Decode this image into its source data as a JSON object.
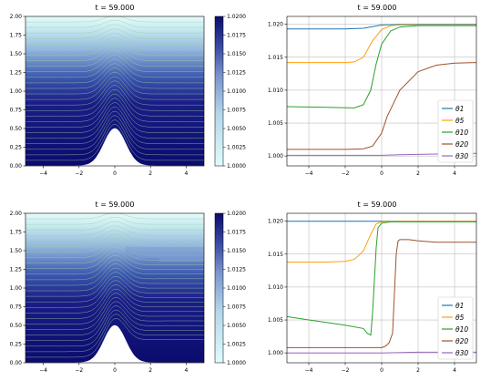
{
  "colors": {
    "cmap_low": "#e0fbfb",
    "cmap_high": "#0b0b6e",
    "cmap_mid": "#8aa6d6",
    "contour_line": "#9ad0a0",
    "contour_tick": "#d24a7a",
    "grid": "#b0b0b0",
    "theta1": "#1f77b4",
    "theta5": "#ff9f0e",
    "theta10": "#2ca02c",
    "theta20": "#a0522d",
    "theta30": "#9467bd"
  },
  "chart_data": [
    {
      "type": "heatmap",
      "panel": "top-left",
      "title": "t = 59.000",
      "xlim": [
        -5,
        5
      ],
      "ylim": [
        0,
        2
      ],
      "x_ticks": [
        "−4",
        "−2",
        "0",
        "2",
        "4"
      ],
      "y_ticks": [
        "0.00",
        "0.25",
        "0.50",
        "0.75",
        "1.00",
        "1.25",
        "1.50",
        "1.75",
        "2.00"
      ],
      "bump": {
        "peak": 0.5,
        "center": 0,
        "width": 1
      },
      "colorbar": {
        "range": [
          1.0,
          1.02
        ],
        "ticks": [
          "1.0200",
          "1.0175",
          "1.0150",
          "1.0125",
          "1.0100",
          "1.0075",
          "1.0050",
          "1.0025",
          "1.0000"
        ]
      }
    },
    {
      "type": "line",
      "panel": "top-right",
      "title": "t = 59.000",
      "xlim": [
        -5.2,
        5.2
      ],
      "ylim": [
        0.9985,
        1.0212
      ],
      "x_ticks": [
        "−4",
        "−2",
        "0",
        "2",
        "4"
      ],
      "y_ticks": [
        "1.000",
        "1.005",
        "1.010",
        "1.015",
        "1.020"
      ],
      "grid": true,
      "legend": "lower-right",
      "series": [
        {
          "name": "θ1",
          "points": [
            [
              -5.2,
              1.0193
            ],
            [
              -4,
              1.0193
            ],
            [
              -2,
              1.0193
            ],
            [
              -1,
              1.0194
            ],
            [
              0,
              1.0199
            ],
            [
              1,
              1.02
            ],
            [
              2,
              1.02
            ],
            [
              5.2,
              1.02
            ]
          ]
        },
        {
          "name": "θ5",
          "points": [
            [
              -5.2,
              1.0142
            ],
            [
              -4,
              1.0142
            ],
            [
              -2,
              1.0142
            ],
            [
              -1.5,
              1.0143
            ],
            [
              -1,
              1.015
            ],
            [
              -0.5,
              1.0175
            ],
            [
              0,
              1.0192
            ],
            [
              0.5,
              1.0198
            ],
            [
              1,
              1.0199
            ],
            [
              2,
              1.0199
            ],
            [
              5.2,
              1.0199
            ]
          ]
        },
        {
          "name": "θ10",
          "points": [
            [
              -5.2,
              1.0075
            ],
            [
              -3,
              1.0074
            ],
            [
              -1.5,
              1.0073
            ],
            [
              -1,
              1.0078
            ],
            [
              -0.6,
              1.01
            ],
            [
              -0.3,
              1.014
            ],
            [
              0,
              1.017
            ],
            [
              0.5,
              1.019
            ],
            [
              1,
              1.0196
            ],
            [
              2,
              1.0198
            ],
            [
              5.2,
              1.0198
            ]
          ]
        },
        {
          "name": "θ20",
          "points": [
            [
              -5.2,
              1.001
            ],
            [
              -2,
              1.001
            ],
            [
              -1,
              1.0011
            ],
            [
              -0.5,
              1.0015
            ],
            [
              0,
              1.0035
            ],
            [
              0.3,
              1.006
            ],
            [
              1,
              1.01
            ],
            [
              2,
              1.0128
            ],
            [
              3,
              1.0138
            ],
            [
              4,
              1.0141
            ],
            [
              5.2,
              1.0142
            ]
          ]
        },
        {
          "name": "θ30",
          "points": [
            [
              -5.2,
              1.0001
            ],
            [
              -2,
              1.0001
            ],
            [
              0,
              1.0001
            ],
            [
              1,
              1.0002
            ],
            [
              3,
              1.0003
            ],
            [
              5.2,
              1.0004
            ]
          ]
        }
      ]
    },
    {
      "type": "heatmap",
      "panel": "bottom-left",
      "title": "t = 59.000",
      "xlim": [
        -5,
        5
      ],
      "ylim": [
        0,
        2
      ],
      "x_ticks": [
        "−4",
        "−2",
        "0",
        "2",
        "4"
      ],
      "y_ticks": [
        "0.00",
        "0.25",
        "0.50",
        "0.75",
        "1.00",
        "1.25",
        "1.50",
        "1.75",
        "2.00"
      ],
      "bump": {
        "peak": 0.5,
        "center": 0,
        "width": 1
      },
      "colorbar": {
        "range": [
          1.0,
          1.02
        ],
        "ticks": [
          "1.0200",
          "1.0175",
          "1.0150",
          "1.0125",
          "1.0100",
          "1.0075",
          "1.0050",
          "1.0025",
          "1.0000"
        ]
      }
    },
    {
      "type": "line",
      "panel": "bottom-right",
      "title": "t = 59.000",
      "xlim": [
        -5.2,
        5.2
      ],
      "ylim": [
        0.9985,
        1.0212
      ],
      "x_ticks": [
        "−4",
        "−2",
        "0",
        "2",
        "4"
      ],
      "y_ticks": [
        "1.000",
        "1.005",
        "1.010",
        "1.015",
        "1.020"
      ],
      "grid": true,
      "legend": "lower-right",
      "series": [
        {
          "name": "θ1",
          "points": [
            [
              -5.2,
              1.02
            ],
            [
              -2,
              1.02
            ],
            [
              0,
              1.02
            ],
            [
              2,
              1.02
            ],
            [
              5.2,
              1.02
            ]
          ]
        },
        {
          "name": "θ5",
          "points": [
            [
              -5.2,
              1.0138
            ],
            [
              -3,
              1.0138
            ],
            [
              -2,
              1.0139
            ],
            [
              -1.5,
              1.0142
            ],
            [
              -1,
              1.0155
            ],
            [
              -0.6,
              1.018
            ],
            [
              -0.3,
              1.0196
            ],
            [
              0,
              1.0199
            ],
            [
              1,
              1.02
            ],
            [
              5.2,
              1.02
            ]
          ]
        },
        {
          "name": "θ10",
          "points": [
            [
              -5.2,
              1.0055
            ],
            [
              -4,
              1.005
            ],
            [
              -3,
              1.0046
            ],
            [
              -2,
              1.0042
            ],
            [
              -1,
              1.0037
            ],
            [
              -0.8,
              1.003
            ],
            [
              -0.6,
              1.0027
            ],
            [
              -0.5,
              1.006
            ],
            [
              -0.4,
              1.011
            ],
            [
              -0.3,
              1.016
            ],
            [
              -0.2,
              1.019
            ],
            [
              0,
              1.0197
            ],
            [
              0.5,
              1.0199
            ],
            [
              5.2,
              1.0199
            ]
          ]
        },
        {
          "name": "θ20",
          "points": [
            [
              -5.2,
              1.0008
            ],
            [
              -1,
              1.0008
            ],
            [
              0,
              1.0008
            ],
            [
              0.2,
              1.001
            ],
            [
              0.4,
              1.0015
            ],
            [
              0.6,
              1.003
            ],
            [
              0.7,
              1.009
            ],
            [
              0.8,
              1.015
            ],
            [
              0.9,
              1.017
            ],
            [
              1.0,
              1.0172
            ],
            [
              1.5,
              1.0172
            ],
            [
              2,
              1.017
            ],
            [
              3,
              1.0168
            ],
            [
              5.2,
              1.0168
            ]
          ]
        },
        {
          "name": "θ30",
          "points": [
            [
              -5.2,
              1.0
            ],
            [
              -2,
              1.0
            ],
            [
              0,
              1.0
            ],
            [
              2,
              1.0001
            ],
            [
              5.2,
              1.0001
            ]
          ]
        }
      ]
    }
  ]
}
